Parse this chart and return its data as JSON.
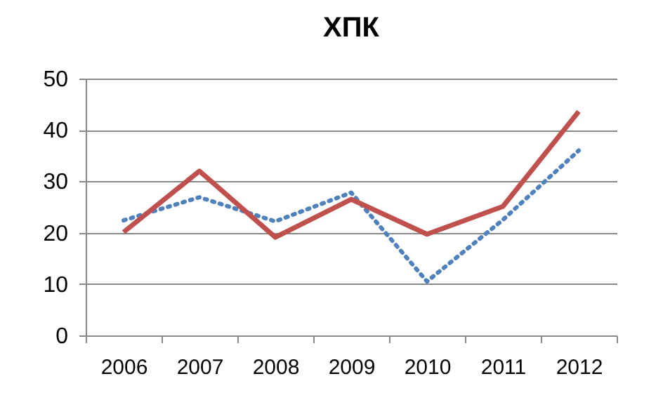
{
  "chart_data": {
    "type": "line",
    "title": "ХПК",
    "categories": [
      "2006",
      "2007",
      "2008",
      "2009",
      "2010",
      "2011",
      "2012"
    ],
    "series": [
      {
        "color": "#4f81bd",
        "line_style": "dotted",
        "values": [
          22.4,
          26.9,
          22.2,
          27.8,
          10.5,
          22.5,
          36
        ]
      },
      {
        "color": "#c0504d",
        "line_style": "solid",
        "values": [
          20.1,
          32,
          19.1,
          26.5,
          19.7,
          25.1,
          43.6
        ]
      }
    ],
    "ylim": [
      0,
      50
    ],
    "yticks": [
      0,
      10,
      20,
      30,
      40,
      50
    ],
    "grid": "y",
    "marker": "none"
  }
}
